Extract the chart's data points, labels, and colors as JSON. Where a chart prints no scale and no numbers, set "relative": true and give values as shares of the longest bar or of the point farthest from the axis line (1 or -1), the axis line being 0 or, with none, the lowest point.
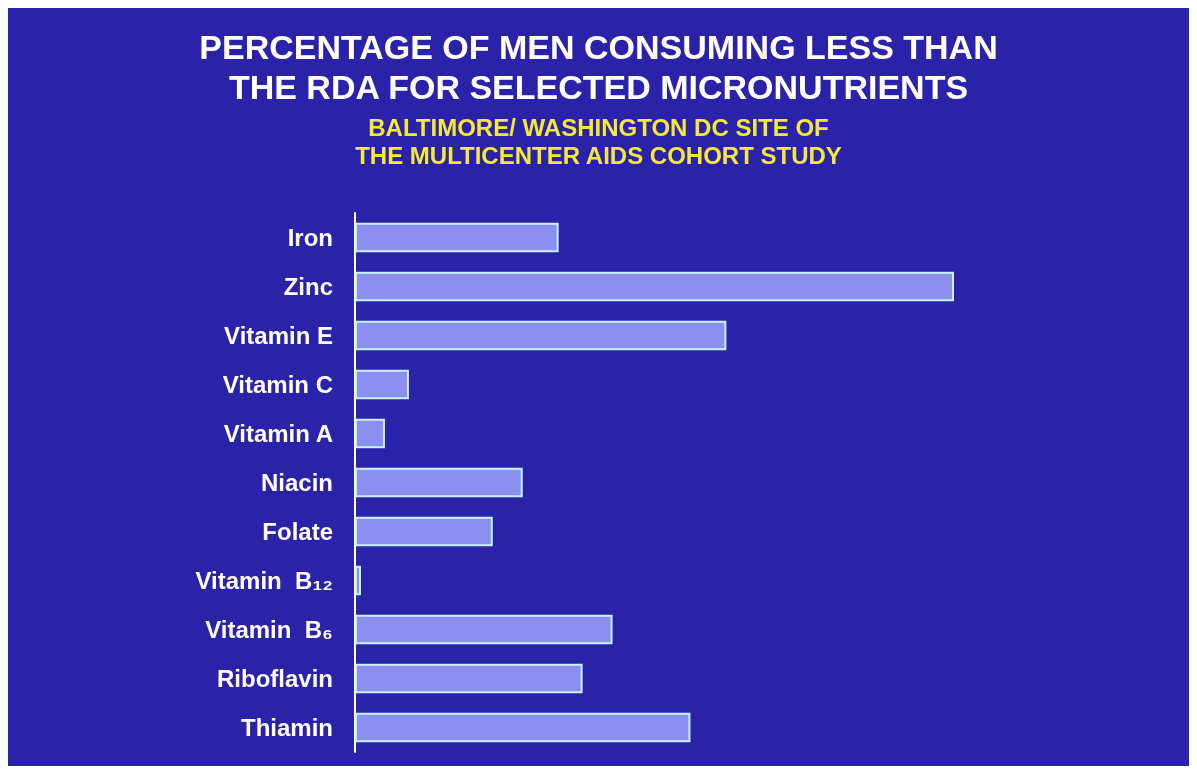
{
  "chart_data": {
    "type": "bar",
    "orientation": "horizontal",
    "relative": true,
    "title": "PERCENTAGE OF MEN CONSUMING LESS THAN\nTHE RDA FOR SELECTED MICRONUTRIENTS",
    "subtitle": "BALTIMORE/ WASHINGTON DC SITE OF\nTHE MULTICENTER AIDS COHORT STUDY",
    "categories": [
      "Iron",
      "Zinc",
      "Vitamin E",
      "Vitamin C",
      "Vitamin A",
      "Niacin",
      "Folate",
      "Vitamin  B₁₂",
      "Vitamin  B₆",
      "Riboflavin",
      "Thiamin"
    ],
    "values": [
      0.34,
      1,
      0.62,
      0.09,
      0.05,
      0.28,
      0.23,
      0.01,
      0.43,
      0.38,
      0.56
    ],
    "color": "#8c8ef0"
  }
}
